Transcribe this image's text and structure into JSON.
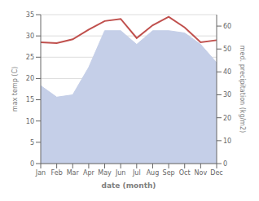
{
  "chart_data": {
    "type": "line",
    "categories": [
      "Jan",
      "Feb",
      "Mar",
      "Apr",
      "May",
      "Jun",
      "Jul",
      "Aug",
      "Sep",
      "Oct",
      "Nov",
      "Dec"
    ],
    "series": [
      {
        "type": "area",
        "axis": "y2",
        "color": "#c5cfe8",
        "values": [
          34,
          29,
          30,
          42,
          58,
          58,
          52,
          58,
          58,
          57,
          52,
          44
        ]
      },
      {
        "type": "line",
        "color": "#c0504d",
        "values": [
          28.5,
          28.3,
          29.2,
          31.5,
          33.5,
          34.0,
          29.5,
          32.5,
          34.5,
          32.0,
          28.5,
          29.0
        ]
      }
    ],
    "xlabel": "date (month)",
    "ylabel": "max temp (C)",
    "y2label": "med. precipitation (kg/m2)",
    "ylim": [
      0,
      35
    ],
    "yticks": [
      0,
      5,
      10,
      15,
      20,
      25,
      30,
      35
    ],
    "y2lim": [
      0,
      65
    ],
    "y2ticks": [
      0,
      10,
      20,
      30,
      40,
      50,
      60
    ],
    "grid": true
  }
}
